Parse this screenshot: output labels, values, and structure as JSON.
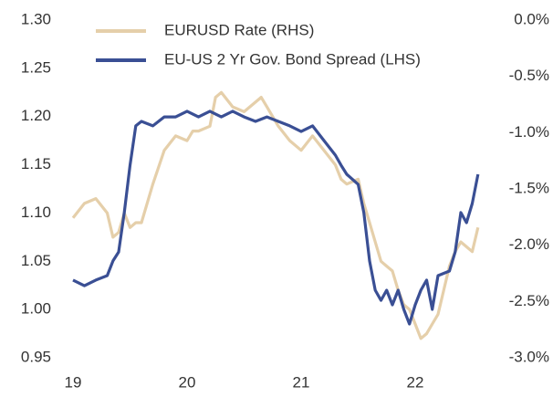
{
  "chart_data": {
    "type": "line",
    "xlim": [
      19,
      22.6
    ],
    "xticks": [
      19,
      20,
      21,
      22
    ],
    "ylim": [
      0.95,
      1.3
    ],
    "yticks": [
      0.95,
      {
        "value": 1.0,
        "label": "1.00"
      },
      1.05,
      {
        "value": 1.1,
        "label": "1.10"
      },
      1.15,
      {
        "value": 1.2,
        "label": "1.20"
      },
      1.25,
      {
        "value": 1.3,
        "label": "1.30"
      }
    ],
    "y2lim": [
      -3.0,
      0.0
    ],
    "y2ticks": [
      {
        "value": -3.0,
        "label": "-3.0%"
      },
      {
        "value": -2.5,
        "label": "-2.5%"
      },
      {
        "value": -2.0,
        "label": "-2.0%"
      },
      {
        "value": -1.5,
        "label": "-1.5%"
      },
      {
        "value": -1.0,
        "label": "-1.0%"
      },
      {
        "value": -0.5,
        "label": "-0.5%"
      },
      {
        "value": 0.0,
        "label": "0.0%"
      }
    ],
    "grid": false,
    "series": [
      {
        "name": "EURUSD Rate (RHS)",
        "color": "#e5cfaa",
        "x": [
          19.0,
          19.1,
          19.2,
          19.3,
          19.35,
          19.4,
          19.45,
          19.5,
          19.55,
          19.6,
          19.7,
          19.8,
          19.9,
          20.0,
          20.05,
          20.1,
          20.2,
          20.25,
          20.3,
          20.4,
          20.5,
          20.6,
          20.65,
          20.7,
          20.8,
          20.9,
          21.0,
          21.1,
          21.2,
          21.3,
          21.35,
          21.4,
          21.5,
          21.55,
          21.6,
          21.65,
          21.7,
          21.75,
          21.8,
          21.85,
          21.9,
          21.95,
          22.0,
          22.05,
          22.1,
          22.15,
          22.2,
          22.3,
          22.35,
          22.4,
          22.45,
          22.5,
          22.55
        ],
        "values": [
          1.095,
          1.11,
          1.115,
          1.1,
          1.075,
          1.08,
          1.1,
          1.085,
          1.09,
          1.09,
          1.13,
          1.165,
          1.18,
          1.175,
          1.185,
          1.185,
          1.19,
          1.22,
          1.225,
          1.21,
          1.205,
          1.215,
          1.22,
          1.21,
          1.19,
          1.175,
          1.165,
          1.18,
          1.165,
          1.15,
          1.135,
          1.13,
          1.135,
          1.11,
          1.09,
          1.07,
          1.05,
          1.045,
          1.04,
          1.02,
          1.005,
          1.0,
          0.985,
          0.97,
          0.975,
          0.985,
          0.995,
          1.045,
          1.06,
          1.07,
          1.065,
          1.06,
          1.085
        ]
      },
      {
        "name": "EU-US 2 Yr Gov. Bond Spread (LHS)",
        "color": "#3a4f94",
        "axis": "y2",
        "x": [
          19.0,
          19.1,
          19.2,
          19.3,
          19.35,
          19.4,
          19.45,
          19.5,
          19.55,
          19.6,
          19.7,
          19.8,
          19.9,
          20.0,
          20.1,
          20.2,
          20.3,
          20.4,
          20.5,
          20.6,
          20.7,
          20.8,
          20.9,
          21.0,
          21.1,
          21.2,
          21.3,
          21.35,
          21.4,
          21.5,
          21.55,
          21.6,
          21.65,
          21.7,
          21.75,
          21.8,
          21.85,
          21.9,
          21.95,
          22.0,
          22.05,
          22.1,
          22.15,
          22.2,
          22.3,
          22.35,
          22.4,
          22.45,
          22.5,
          22.55
        ],
        "values": [
          -2.31,
          -2.36,
          -2.31,
          -2.27,
          -2.14,
          -2.06,
          -1.71,
          -1.29,
          -0.94,
          -0.9,
          -0.94,
          -0.86,
          -0.86,
          -0.81,
          -0.86,
          -0.81,
          -0.86,
          -0.81,
          -0.86,
          -0.9,
          -0.86,
          -0.9,
          -0.94,
          -0.99,
          -0.94,
          -1.07,
          -1.2,
          -1.29,
          -1.37,
          -1.46,
          -1.71,
          -2.14,
          -2.4,
          -2.49,
          -2.4,
          -2.53,
          -2.4,
          -2.57,
          -2.7,
          -2.53,
          -2.4,
          -2.31,
          -2.57,
          -2.27,
          -2.23,
          -2.06,
          -1.71,
          -1.8,
          -1.63,
          -1.37
        ]
      }
    ]
  }
}
